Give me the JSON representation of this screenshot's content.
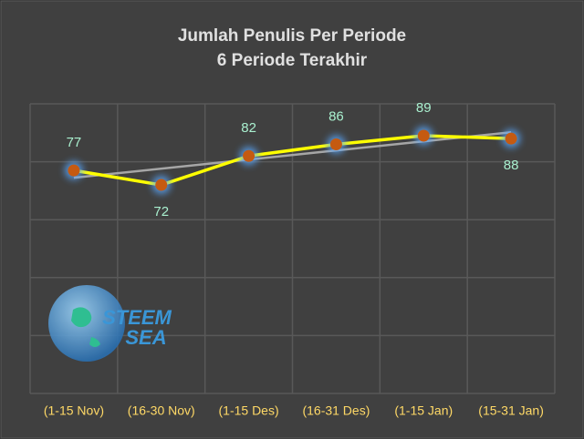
{
  "chart_data": {
    "type": "line",
    "title": "Jumlah Penulis Per Periode",
    "subtitle": "6 Periode Terakhir",
    "categories": [
      "(1-15 Nov)",
      "(16-30 Nov)",
      "(1-15 Des)",
      "(16-31 Des)",
      "(1-15 Jan)",
      "(15-31 Jan)"
    ],
    "series": [
      {
        "name": "Jumlah Penulis",
        "color": "#ffff00",
        "marker_color": "#c55a11",
        "values": [
          77,
          72,
          82,
          86,
          89,
          88
        ]
      }
    ],
    "trendline": true,
    "trendline_color": "#a6a6a6",
    "ylim": [
      0,
      100
    ],
    "yticks": [
      0,
      20,
      40,
      60,
      80,
      100
    ],
    "grid": true,
    "logo": [
      "STEEM",
      "SEA"
    ]
  }
}
